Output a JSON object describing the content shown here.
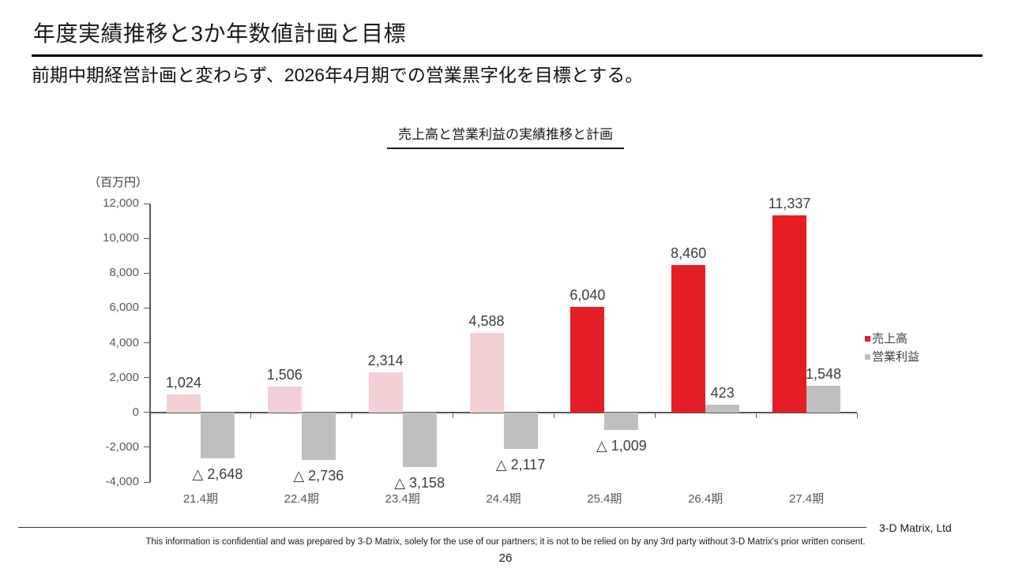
{
  "header": {
    "title": "年度実績推移と3か年数値計画と目標",
    "subtitle": "前期中期経営計画と変わらず、2026年4月期での営業黒字化を目標とする。"
  },
  "chart_data": {
    "type": "bar",
    "title": "売上高と営業利益の実績推移と計画",
    "unit": "（百万円）",
    "categories": [
      "21.4期",
      "22.4期",
      "23.4期",
      "24.4期",
      "25.4期",
      "26.4期",
      "27.4期"
    ],
    "series": [
      {
        "name": "売上高",
        "values": [
          1024,
          1506,
          2314,
          4588,
          6040,
          8460,
          11337
        ],
        "labels": [
          "1,024",
          "1,506",
          "2,314",
          "4,588",
          "6,040",
          "8,460",
          "11,337"
        ],
        "bar_colors": [
          "#f2d0d3",
          "#f2d0d3",
          "#f2d0d3",
          "#f2d0d3",
          "#e51e25",
          "#e51e25",
          "#e51e25"
        ],
        "legend_color": "#e51e25"
      },
      {
        "name": "営業利益",
        "values": [
          -2648,
          -2736,
          -3158,
          -2117,
          -1009,
          423,
          1548
        ],
        "labels": [
          "△ 2,648",
          "△ 2,736",
          "△ 3,158",
          "△ 2,117",
          "△ 1,009",
          "423",
          "1,548"
        ],
        "bar_colors": [
          "#bfbfbf",
          "#bfbfbf",
          "#bfbfbf",
          "#bfbfbf",
          "#bfbfbf",
          "#bfbfbf",
          "#bfbfbf"
        ],
        "legend_color": "#bfbfbf"
      }
    ],
    "ylim": [
      -4000,
      12000
    ],
    "ytick_step": 2000,
    "ytick_labels": [
      "-4,000",
      "-2,000",
      "0",
      "2,000",
      "4,000",
      "6,000",
      "8,000",
      "10,000",
      "12,000"
    ],
    "grid": false,
    "legend_position": "right"
  },
  "footer": {
    "company": "3-D Matrix, Ltd",
    "disclaimer": "This information is confidential and was prepared by 3-D Matrix, solely for the use of our partners; it is not to be relied on by any 3rd party without 3-D Matrix's prior written consent.",
    "page_number": "26"
  }
}
